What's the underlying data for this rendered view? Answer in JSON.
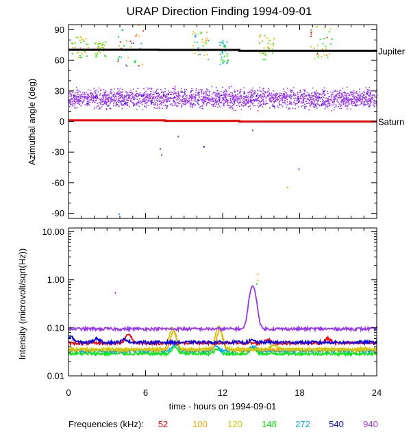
{
  "title": "URAP Direction Finding  1994-09-01",
  "chart_data": [
    {
      "type": "scatter",
      "panel": "azimuth",
      "ylabel": "Azimuthal angle (deg)",
      "ylim": [
        -95,
        95
      ],
      "xlim": [
        0,
        24
      ],
      "yticks": [
        90,
        60,
        30,
        0,
        -30,
        -60,
        -90
      ],
      "reference_lines": [
        {
          "name": "Jupiter",
          "color": "#000000",
          "points": [
            [
              0,
              70.5
            ],
            [
              7,
              70.5
            ],
            [
              7,
              70.2
            ],
            [
              13.3,
              70.2
            ],
            [
              13.3,
              69.3
            ],
            [
              24,
              69.3
            ]
          ]
        },
        {
          "name": "Saturn",
          "color": "#ff0000",
          "points": [
            [
              0,
              1.2
            ],
            [
              7.5,
              1.2
            ],
            [
              7.5,
              0.6
            ],
            [
              13.3,
              0.6
            ],
            [
              13.3,
              0.0
            ],
            [
              24,
              0.0
            ]
          ]
        }
      ],
      "band": {
        "series": "940",
        "center": 23,
        "spread": 7,
        "x_range": [
          0,
          24
        ]
      },
      "clusters": [
        {
          "x": [
            0.2,
            1.5
          ],
          "y": [
            63,
            84
          ],
          "series": [
            "120",
            "100",
            "148"
          ]
        },
        {
          "x": [
            1.9,
            3.0
          ],
          "y": [
            64,
            79
          ],
          "series": [
            "148",
            "120"
          ]
        },
        {
          "x": [
            3.8,
            5.8
          ],
          "y": [
            55,
            95
          ],
          "series": [
            "148",
            "272",
            "52",
            "100"
          ]
        },
        {
          "x": [
            9.6,
            10.9
          ],
          "y": [
            60,
            89
          ],
          "series": [
            "148",
            "120",
            "100",
            "272"
          ]
        },
        {
          "x": [
            11.7,
            12.4
          ],
          "y": [
            56,
            80
          ],
          "series": [
            "148",
            "272"
          ]
        },
        {
          "x": [
            14.8,
            16.0
          ],
          "y": [
            60,
            86
          ],
          "series": [
            "148",
            "100",
            "120"
          ]
        },
        {
          "x": [
            18.8,
            20.5
          ],
          "y": [
            62,
            95
          ],
          "series": [
            "148",
            "120",
            "52",
            "100"
          ]
        }
      ],
      "outliers": [
        {
          "x": 7.1,
          "y": -26,
          "series": "940"
        },
        {
          "x": 7.2,
          "y": -32,
          "series": "940"
        },
        {
          "x": 10.5,
          "y": -24,
          "series": "540"
        },
        {
          "x": 3.9,
          "y": -90,
          "series": "272"
        },
        {
          "x": 17.0,
          "y": -64,
          "series": "100"
        },
        {
          "x": 17.9,
          "y": -46,
          "series": "940"
        },
        {
          "x": 14.3,
          "y": -8,
          "series": "940"
        },
        {
          "x": 8.5,
          "y": -14,
          "series": "940"
        }
      ]
    },
    {
      "type": "line",
      "panel": "intensity",
      "ylabel": "Intensity (microvolt/sqrt(Hz))",
      "yscale": "log",
      "ylim": [
        0.01,
        12
      ],
      "xlim": [
        0,
        24
      ],
      "xticks": [
        0,
        6,
        12,
        18,
        24
      ],
      "yticks": [
        10.0,
        1.0,
        0.1,
        0.01
      ],
      "ytick_labels": [
        "10.00",
        "1.00",
        "0.10",
        "0.01"
      ],
      "xlabel": "time - hours on 1994-09-01",
      "series": [
        {
          "name": "940",
          "color": "#9933ff",
          "base": 0.095,
          "peaks": [
            [
              14.3,
              0.6
            ],
            [
              14.5,
              0.3
            ]
          ]
        },
        {
          "name": "540",
          "color": "#0000ff",
          "base": 0.05,
          "peaks": [
            [
              0.2,
              0.065
            ],
            [
              2.2,
              0.06
            ],
            [
              4.4,
              0.058
            ],
            [
              14.3,
              0.055
            ]
          ]
        },
        {
          "name": "52",
          "color": "#ff0000",
          "base": 0.048,
          "peaks": [
            [
              4.7,
              0.075
            ],
            [
              20.2,
              0.06
            ],
            [
              15.5,
              0.058
            ]
          ]
        },
        {
          "name": "120",
          "color": "#cccc00",
          "base": 0.036,
          "peaks": [
            [
              8.1,
              0.1
            ],
            [
              11.7,
              0.11
            ],
            [
              16.0,
              0.045
            ]
          ]
        },
        {
          "name": "100",
          "color": "#ffa500",
          "base": 0.035,
          "peaks": [
            [
              8.2,
              0.085
            ],
            [
              11.8,
              0.09
            ]
          ]
        },
        {
          "name": "272",
          "color": "#00aaff",
          "base": 0.033,
          "peaks": [
            [
              8.3,
              0.045
            ],
            [
              11.5,
              0.042
            ],
            [
              14.4,
              0.042
            ]
          ]
        },
        {
          "name": "148",
          "color": "#00ee00",
          "base": 0.029,
          "peaks": [
            [
              8.3,
              0.04
            ],
            [
              14.4,
              0.038
            ],
            [
              11.6,
              0.036
            ]
          ]
        }
      ],
      "points": [
        {
          "x": 3.6,
          "y": 0.55,
          "series": "940"
        },
        {
          "x": 14.7,
          "y": 1.35,
          "series": "100"
        },
        {
          "x": 14.7,
          "y": 1.0,
          "series": "120"
        },
        {
          "x": 14.6,
          "y": 0.85,
          "series": "148"
        }
      ]
    }
  ],
  "legend": {
    "title": "Frequencies (kHz):",
    "entries": [
      {
        "name": "52",
        "color": "#ff0000"
      },
      {
        "name": "100",
        "color": "#ffa500"
      },
      {
        "name": "120",
        "color": "#cccc00"
      },
      {
        "name": "148",
        "color": "#00ee00"
      },
      {
        "name": "272",
        "color": "#00aaff"
      },
      {
        "name": "540",
        "color": "#0000ff"
      },
      {
        "name": "940",
        "color": "#9933ff"
      }
    ]
  }
}
